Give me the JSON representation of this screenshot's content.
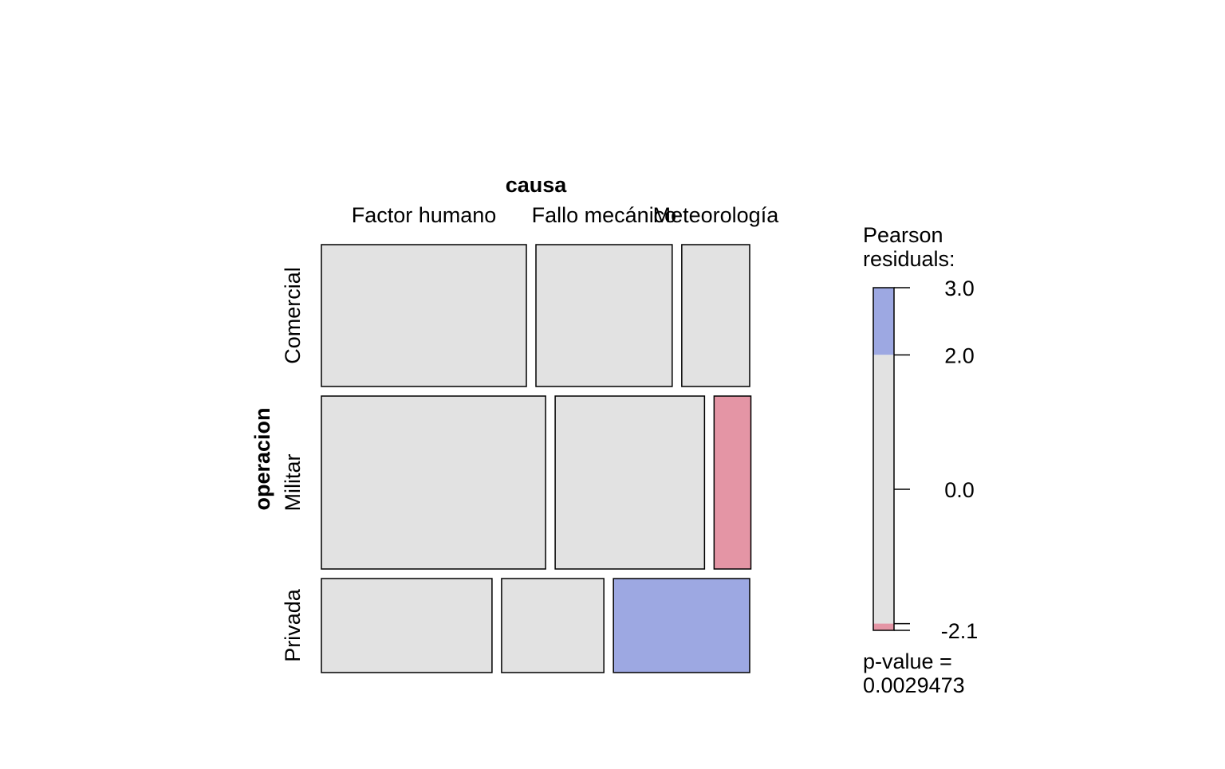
{
  "chart_data": {
    "type": "mosaic",
    "x_variable": "causa",
    "y_variable": "operacion",
    "x_levels": [
      "Factor humano",
      "Fallo mecánico",
      "Meteorología"
    ],
    "y_levels": [
      "Comercial",
      "Militar",
      "Privada"
    ],
    "row_proportions": [
      0.347,
      0.423,
      0.23
    ],
    "conditional_column_proportions": [
      [
        0.501,
        0.333,
        0.166
      ],
      [
        0.548,
        0.365,
        0.09
      ],
      [
        0.417,
        0.25,
        0.333
      ]
    ],
    "residual_class": [
      [
        "none",
        "none",
        "none"
      ],
      [
        "none",
        "none",
        "negative"
      ],
      [
        "none",
        "none",
        "positive"
      ]
    ],
    "colors": {
      "none": "#E2E2E2",
      "positive": "#9DA8E2",
      "negative": "#E495A5"
    },
    "legend": {
      "title_line1": "Pearson",
      "title_line2": "residuals:",
      "range": [
        -2.1,
        3.0
      ],
      "shading_thresholds": [
        -2.0,
        2.0
      ],
      "ticks": [
        3.0,
        2.0,
        0.0,
        -2.0,
        -2.1
      ],
      "tick_labels": [
        "3.0",
        "2.0",
        "0.0",
        "-2.1"
      ],
      "pvalue_label": "p-value =",
      "pvalue": "0.0029473"
    }
  }
}
